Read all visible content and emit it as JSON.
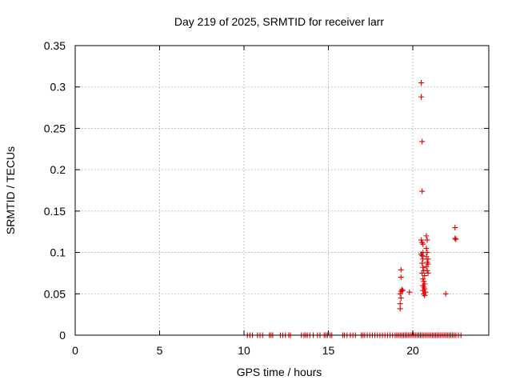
{
  "chart_data": {
    "type": "scatter",
    "title": "Day 219 of 2025, SRMTID for receiver larr",
    "xlabel": "GPS time / hours",
    "ylabel": "SRMTID / TECUs",
    "xlim": [
      0,
      24.5
    ],
    "ylim": [
      0,
      0.35
    ],
    "xticks": [
      0,
      5,
      10,
      15,
      20
    ],
    "xtick_labels": [
      "0",
      "5",
      "10",
      "15",
      "20"
    ],
    "yticks": [
      0,
      0.05,
      0.1,
      0.15,
      0.2,
      0.25,
      0.3,
      0.35
    ],
    "ytick_labels": [
      "0",
      "0.05",
      "0.1",
      "0.15",
      "0.2",
      "0.25",
      "0.3",
      "0.35"
    ],
    "grid": true,
    "marker": "plus",
    "color": "#dd0000",
    "series": [
      {
        "name": "SRMTID",
        "points": [
          [
            10.2,
            0
          ],
          [
            10.35,
            0
          ],
          [
            10.5,
            0
          ],
          [
            10.8,
            0
          ],
          [
            10.95,
            0
          ],
          [
            11.1,
            0
          ],
          [
            11.5,
            0
          ],
          [
            11.6,
            0
          ],
          [
            11.7,
            0
          ],
          [
            12.15,
            0
          ],
          [
            12.3,
            0
          ],
          [
            12.45,
            0
          ],
          [
            12.65,
            0
          ],
          [
            12.75,
            0
          ],
          [
            13.4,
            0
          ],
          [
            13.55,
            0
          ],
          [
            13.65,
            0
          ],
          [
            13.75,
            0
          ],
          [
            13.9,
            0
          ],
          [
            14.1,
            0
          ],
          [
            14.35,
            0
          ],
          [
            14.5,
            0
          ],
          [
            14.75,
            0
          ],
          [
            14.85,
            0
          ],
          [
            14.95,
            0
          ],
          [
            15.1,
            0
          ],
          [
            15.2,
            0
          ],
          [
            15.85,
            0
          ],
          [
            15.95,
            0
          ],
          [
            16.1,
            0
          ],
          [
            16.3,
            0
          ],
          [
            16.45,
            0
          ],
          [
            16.6,
            0
          ],
          [
            16.95,
            0
          ],
          [
            17.05,
            0
          ],
          [
            17.15,
            0
          ],
          [
            17.3,
            0
          ],
          [
            17.45,
            0
          ],
          [
            17.6,
            0
          ],
          [
            17.75,
            0
          ],
          [
            17.9,
            0
          ],
          [
            18.05,
            0
          ],
          [
            18.2,
            0
          ],
          [
            18.35,
            0
          ],
          [
            18.5,
            0
          ],
          [
            18.65,
            0
          ],
          [
            18.8,
            0
          ],
          [
            18.95,
            0
          ],
          [
            19.05,
            0
          ],
          [
            19.15,
            0
          ],
          [
            19.25,
            0
          ],
          [
            19.35,
            0
          ],
          [
            19.45,
            0
          ],
          [
            19.55,
            0
          ],
          [
            19.65,
            0
          ],
          [
            19.75,
            0
          ],
          [
            19.85,
            0
          ],
          [
            19.95,
            0
          ],
          [
            20.05,
            0
          ],
          [
            20.15,
            0
          ],
          [
            20.25,
            0
          ],
          [
            20.35,
            0
          ],
          [
            20.45,
            0
          ],
          [
            20.55,
            0
          ],
          [
            20.65,
            0
          ],
          [
            20.75,
            0
          ],
          [
            20.85,
            0
          ],
          [
            20.95,
            0
          ],
          [
            21.05,
            0
          ],
          [
            21.15,
            0
          ],
          [
            21.25,
            0
          ],
          [
            21.35,
            0
          ],
          [
            21.45,
            0
          ],
          [
            21.55,
            0
          ],
          [
            21.65,
            0
          ],
          [
            21.75,
            0
          ],
          [
            21.85,
            0
          ],
          [
            21.95,
            0
          ],
          [
            22.05,
            0
          ],
          [
            22.15,
            0
          ],
          [
            22.25,
            0
          ],
          [
            22.35,
            0
          ],
          [
            22.45,
            0
          ],
          [
            22.55,
            0
          ],
          [
            22.7,
            0
          ],
          [
            22.85,
            0
          ],
          [
            19.3,
            0.079
          ],
          [
            19.3,
            0.07
          ],
          [
            19.35,
            0.055
          ],
          [
            19.3,
            0.053
          ],
          [
            19.25,
            0.05
          ],
          [
            19.3,
            0.045
          ],
          [
            19.25,
            0.038
          ],
          [
            19.25,
            0.032
          ],
          [
            19.4,
            0.054
          ],
          [
            19.8,
            0.052
          ],
          [
            20.5,
            0.305
          ],
          [
            20.5,
            0.288
          ],
          [
            20.55,
            0.234
          ],
          [
            20.55,
            0.174
          ],
          [
            20.5,
            0.115
          ],
          [
            20.55,
            0.112
          ],
          [
            20.6,
            0.11
          ],
          [
            20.5,
            0.098
          ],
          [
            20.6,
            0.1
          ],
          [
            20.55,
            0.096
          ],
          [
            20.6,
            0.092
          ],
          [
            20.55,
            0.087
          ],
          [
            20.6,
            0.082
          ],
          [
            20.65,
            0.078
          ],
          [
            20.55,
            0.075
          ],
          [
            20.7,
            0.072
          ],
          [
            20.6,
            0.068
          ],
          [
            20.65,
            0.065
          ],
          [
            20.7,
            0.062
          ],
          [
            20.6,
            0.06
          ],
          [
            20.65,
            0.058
          ],
          [
            20.7,
            0.056
          ],
          [
            20.6,
            0.054
          ],
          [
            20.75,
            0.052
          ],
          [
            20.65,
            0.05
          ],
          [
            20.7,
            0.048
          ],
          [
            20.8,
            0.12
          ],
          [
            20.85,
            0.115
          ],
          [
            20.8,
            0.105
          ],
          [
            20.85,
            0.1
          ],
          [
            20.8,
            0.095
          ],
          [
            20.9,
            0.092
          ],
          [
            20.85,
            0.088
          ],
          [
            20.9,
            0.086
          ],
          [
            20.8,
            0.083
          ],
          [
            20.85,
            0.078
          ],
          [
            20.9,
            0.075
          ],
          [
            21.95,
            0.05
          ],
          [
            22.5,
            0.13
          ],
          [
            22.5,
            0.117
          ],
          [
            22.55,
            0.116
          ]
        ]
      }
    ]
  }
}
